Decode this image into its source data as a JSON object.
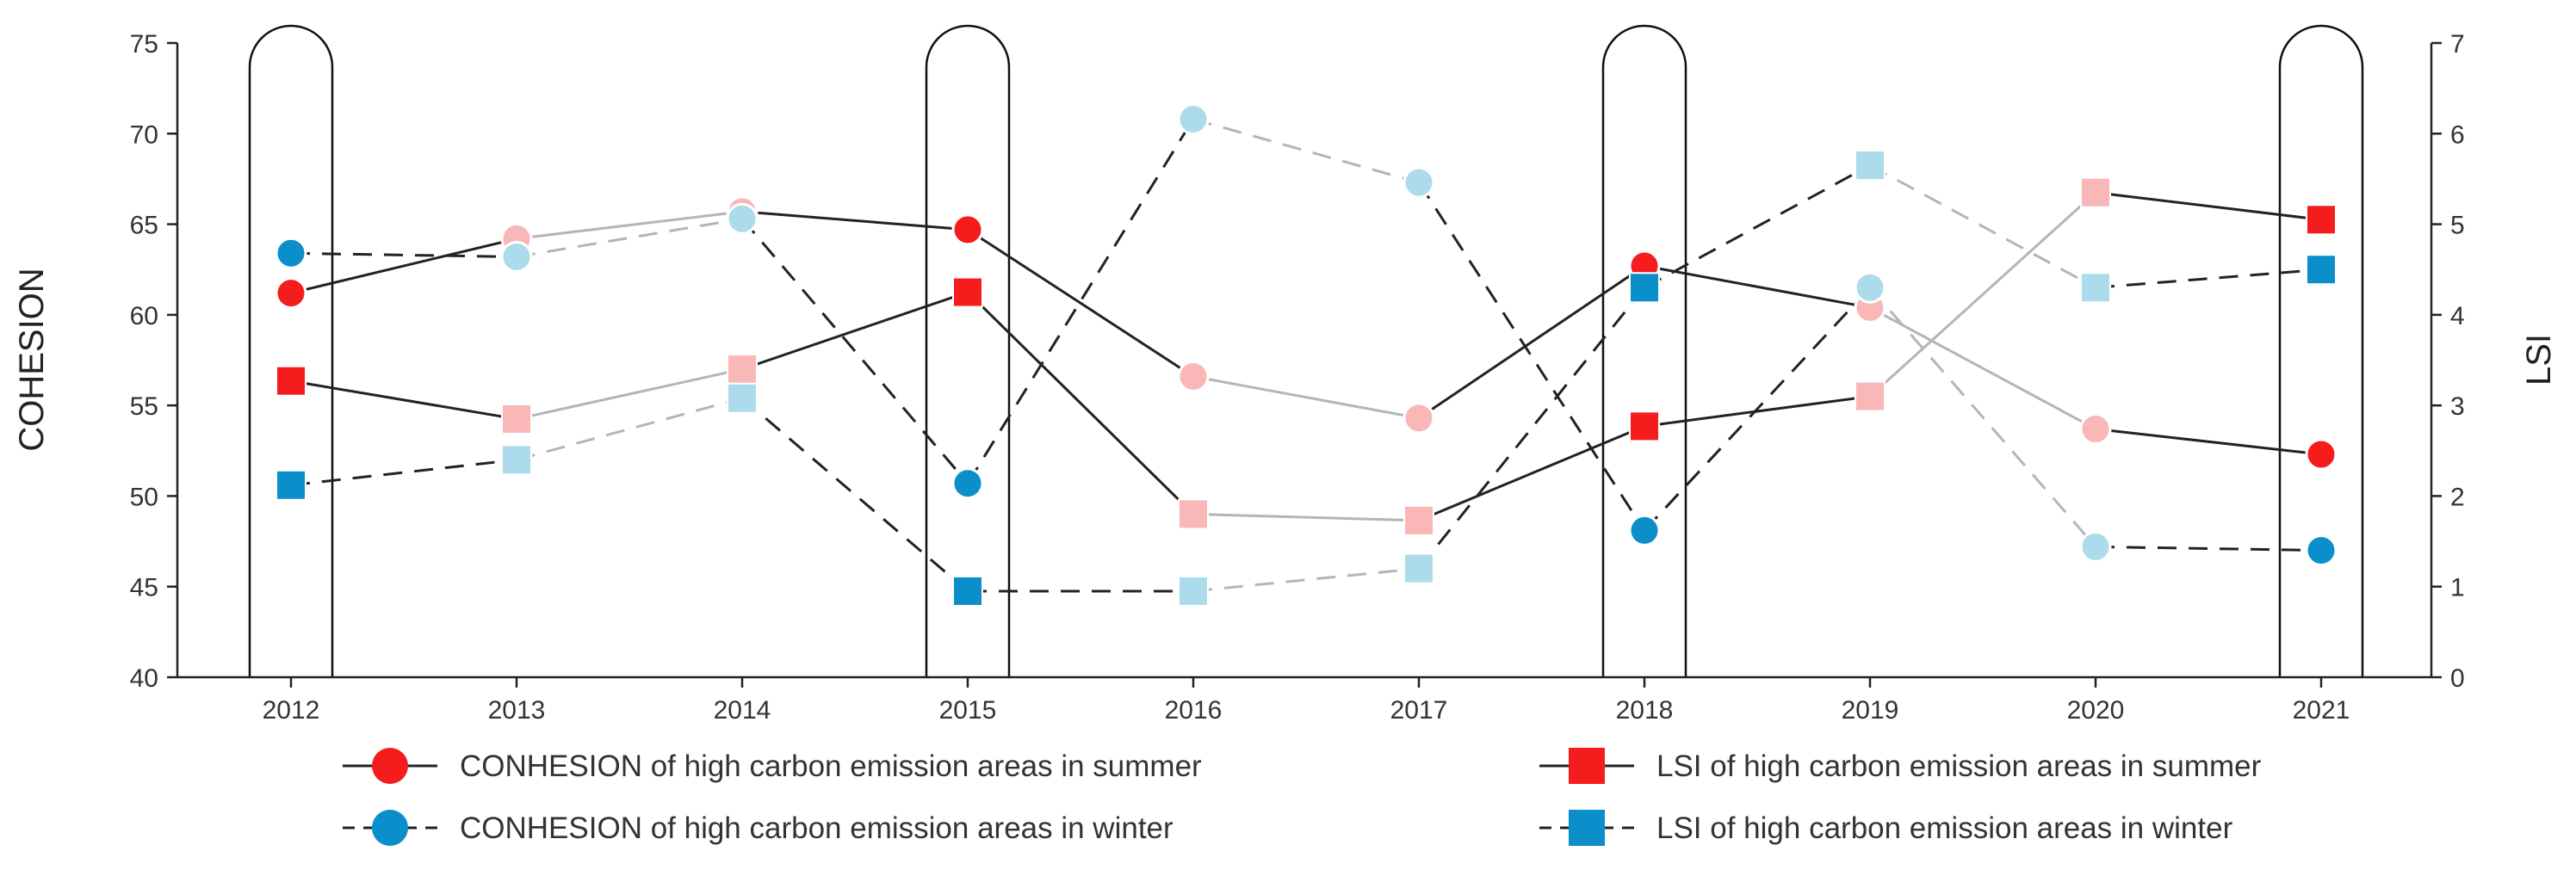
{
  "chart_data": {
    "type": "line",
    "categories": [
      "2012",
      "2013",
      "2014",
      "2015",
      "2016",
      "2017",
      "2018",
      "2019",
      "2020",
      "2021"
    ],
    "highlighted_categories": [
      "2012",
      "2015",
      "2018",
      "2021"
    ],
    "left_axis": {
      "label": "COHESION",
      "ylim": [
        40,
        75
      ],
      "ticks": [
        "40",
        "45",
        "50",
        "55",
        "60",
        "65",
        "70",
        "75"
      ]
    },
    "right_axis": {
      "label": "LSI",
      "ylim": [
        0,
        7
      ],
      "ticks": [
        "0",
        "1",
        "2",
        "3",
        "4",
        "5",
        "6",
        "7"
      ]
    },
    "legend_position": "bottom",
    "series": [
      {
        "name": "CONHESION of high carbon emission areas in summer",
        "axis": "left",
        "marker": "circle",
        "line_style": "solid",
        "color": "#f41c1c",
        "faded_color": "#f9b7b7",
        "values": [
          61.2,
          64.2,
          65.7,
          64.7,
          56.6,
          54.3,
          62.7,
          60.4,
          53.7,
          52.3
        ]
      },
      {
        "name": "CONHESION of high carbon emission areas in winter",
        "axis": "left",
        "marker": "circle",
        "line_style": "dashed",
        "color": "#0b8fcb",
        "faded_color": "#acdcec",
        "values": [
          63.4,
          63.2,
          65.3,
          50.7,
          70.8,
          67.3,
          48.1,
          61.5,
          47.2,
          47.0
        ]
      },
      {
        "name": "LSI of high carbon emission areas in summer",
        "axis": "right",
        "marker": "square",
        "line_style": "solid",
        "color": "#f41c1c",
        "faded_color": "#f9b7b7",
        "values": [
          3.27,
          2.85,
          3.4,
          4.25,
          1.8,
          1.73,
          2.77,
          3.1,
          5.35,
          5.05
        ]
      },
      {
        "name": "LSI of high carbon emission areas in winter",
        "axis": "right",
        "marker": "square",
        "line_style": "dashed",
        "color": "#0b8fcb",
        "faded_color": "#acdcec",
        "values": [
          2.12,
          2.4,
          3.08,
          0.95,
          0.95,
          1.2,
          4.3,
          5.65,
          4.3,
          4.5
        ]
      }
    ]
  }
}
